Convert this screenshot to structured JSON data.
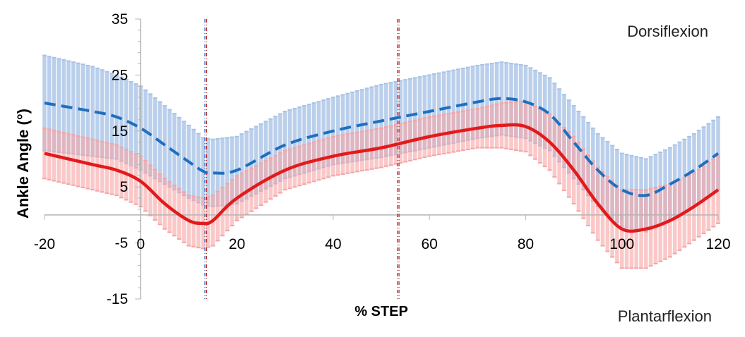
{
  "chart_data": {
    "type": "line",
    "title": "",
    "xlabel": "% STEP",
    "ylabel": "Ankle Angle  (°)",
    "xlim": [
      -20,
      120
    ],
    "ylim": [
      -15,
      35
    ],
    "x_ticks": [
      -20,
      0,
      20,
      40,
      60,
      80,
      100,
      120
    ],
    "y_ticks": [
      35,
      25,
      15,
      5,
      -5,
      -15
    ],
    "x_tick_labels": [
      "-20",
      "0",
      "20",
      "40",
      "60",
      "80",
      "100",
      "120"
    ],
    "y_tick_labels": [
      "35",
      "25",
      "15",
      "5",
      "-5",
      "-15"
    ],
    "annotations": [
      "Dorsiflexion",
      "Plantarflexion"
    ],
    "grid": false,
    "vertical_markers": [
      13.5,
      53.5
    ],
    "x": [
      -20,
      -10,
      -5,
      0,
      5,
      10,
      13,
      15,
      20,
      30,
      40,
      50,
      60,
      70,
      75,
      80,
      85,
      90,
      95,
      100,
      105,
      110,
      115,
      120
    ],
    "series": [
      {
        "color": "#1f6fbf",
        "band_color": "#a9c3e6",
        "style": "dashed",
        "values": [
          20,
          18.5,
          17.5,
          15.5,
          12.5,
          9.5,
          7.8,
          7.5,
          8,
          12.5,
          15,
          16.8,
          18.5,
          20.2,
          20.8,
          20.2,
          18,
          13,
          8,
          4.5,
          3.5,
          5.5,
          8,
          11
        ],
        "sd": [
          8.5,
          8,
          7.5,
          7.5,
          7,
          6.5,
          6,
          6,
          6,
          6,
          6,
          6.5,
          6.5,
          6.5,
          6.5,
          6.5,
          6.5,
          6.5,
          6.5,
          6.5,
          6.5,
          6.5,
          6.5,
          6.5
        ]
      },
      {
        "color": "#e31a1c",
        "band_color": "#f6a4a4",
        "style": "solid",
        "values": [
          11,
          9,
          8,
          6,
          2,
          -1,
          -1.5,
          -1,
          3,
          8,
          10.5,
          12,
          14,
          15.5,
          16,
          15.8,
          13,
          8,
          2,
          -2.5,
          -2.5,
          -1,
          1.5,
          4.5
        ],
        "sd": [
          4.5,
          4.5,
          4.5,
          4.5,
          4.5,
          4.5,
          4.5,
          4.5,
          4,
          3.5,
          3.5,
          3.5,
          3.5,
          3.5,
          4,
          4.5,
          5,
          6,
          6.5,
          7,
          7,
          6.5,
          6,
          6
        ]
      }
    ]
  }
}
